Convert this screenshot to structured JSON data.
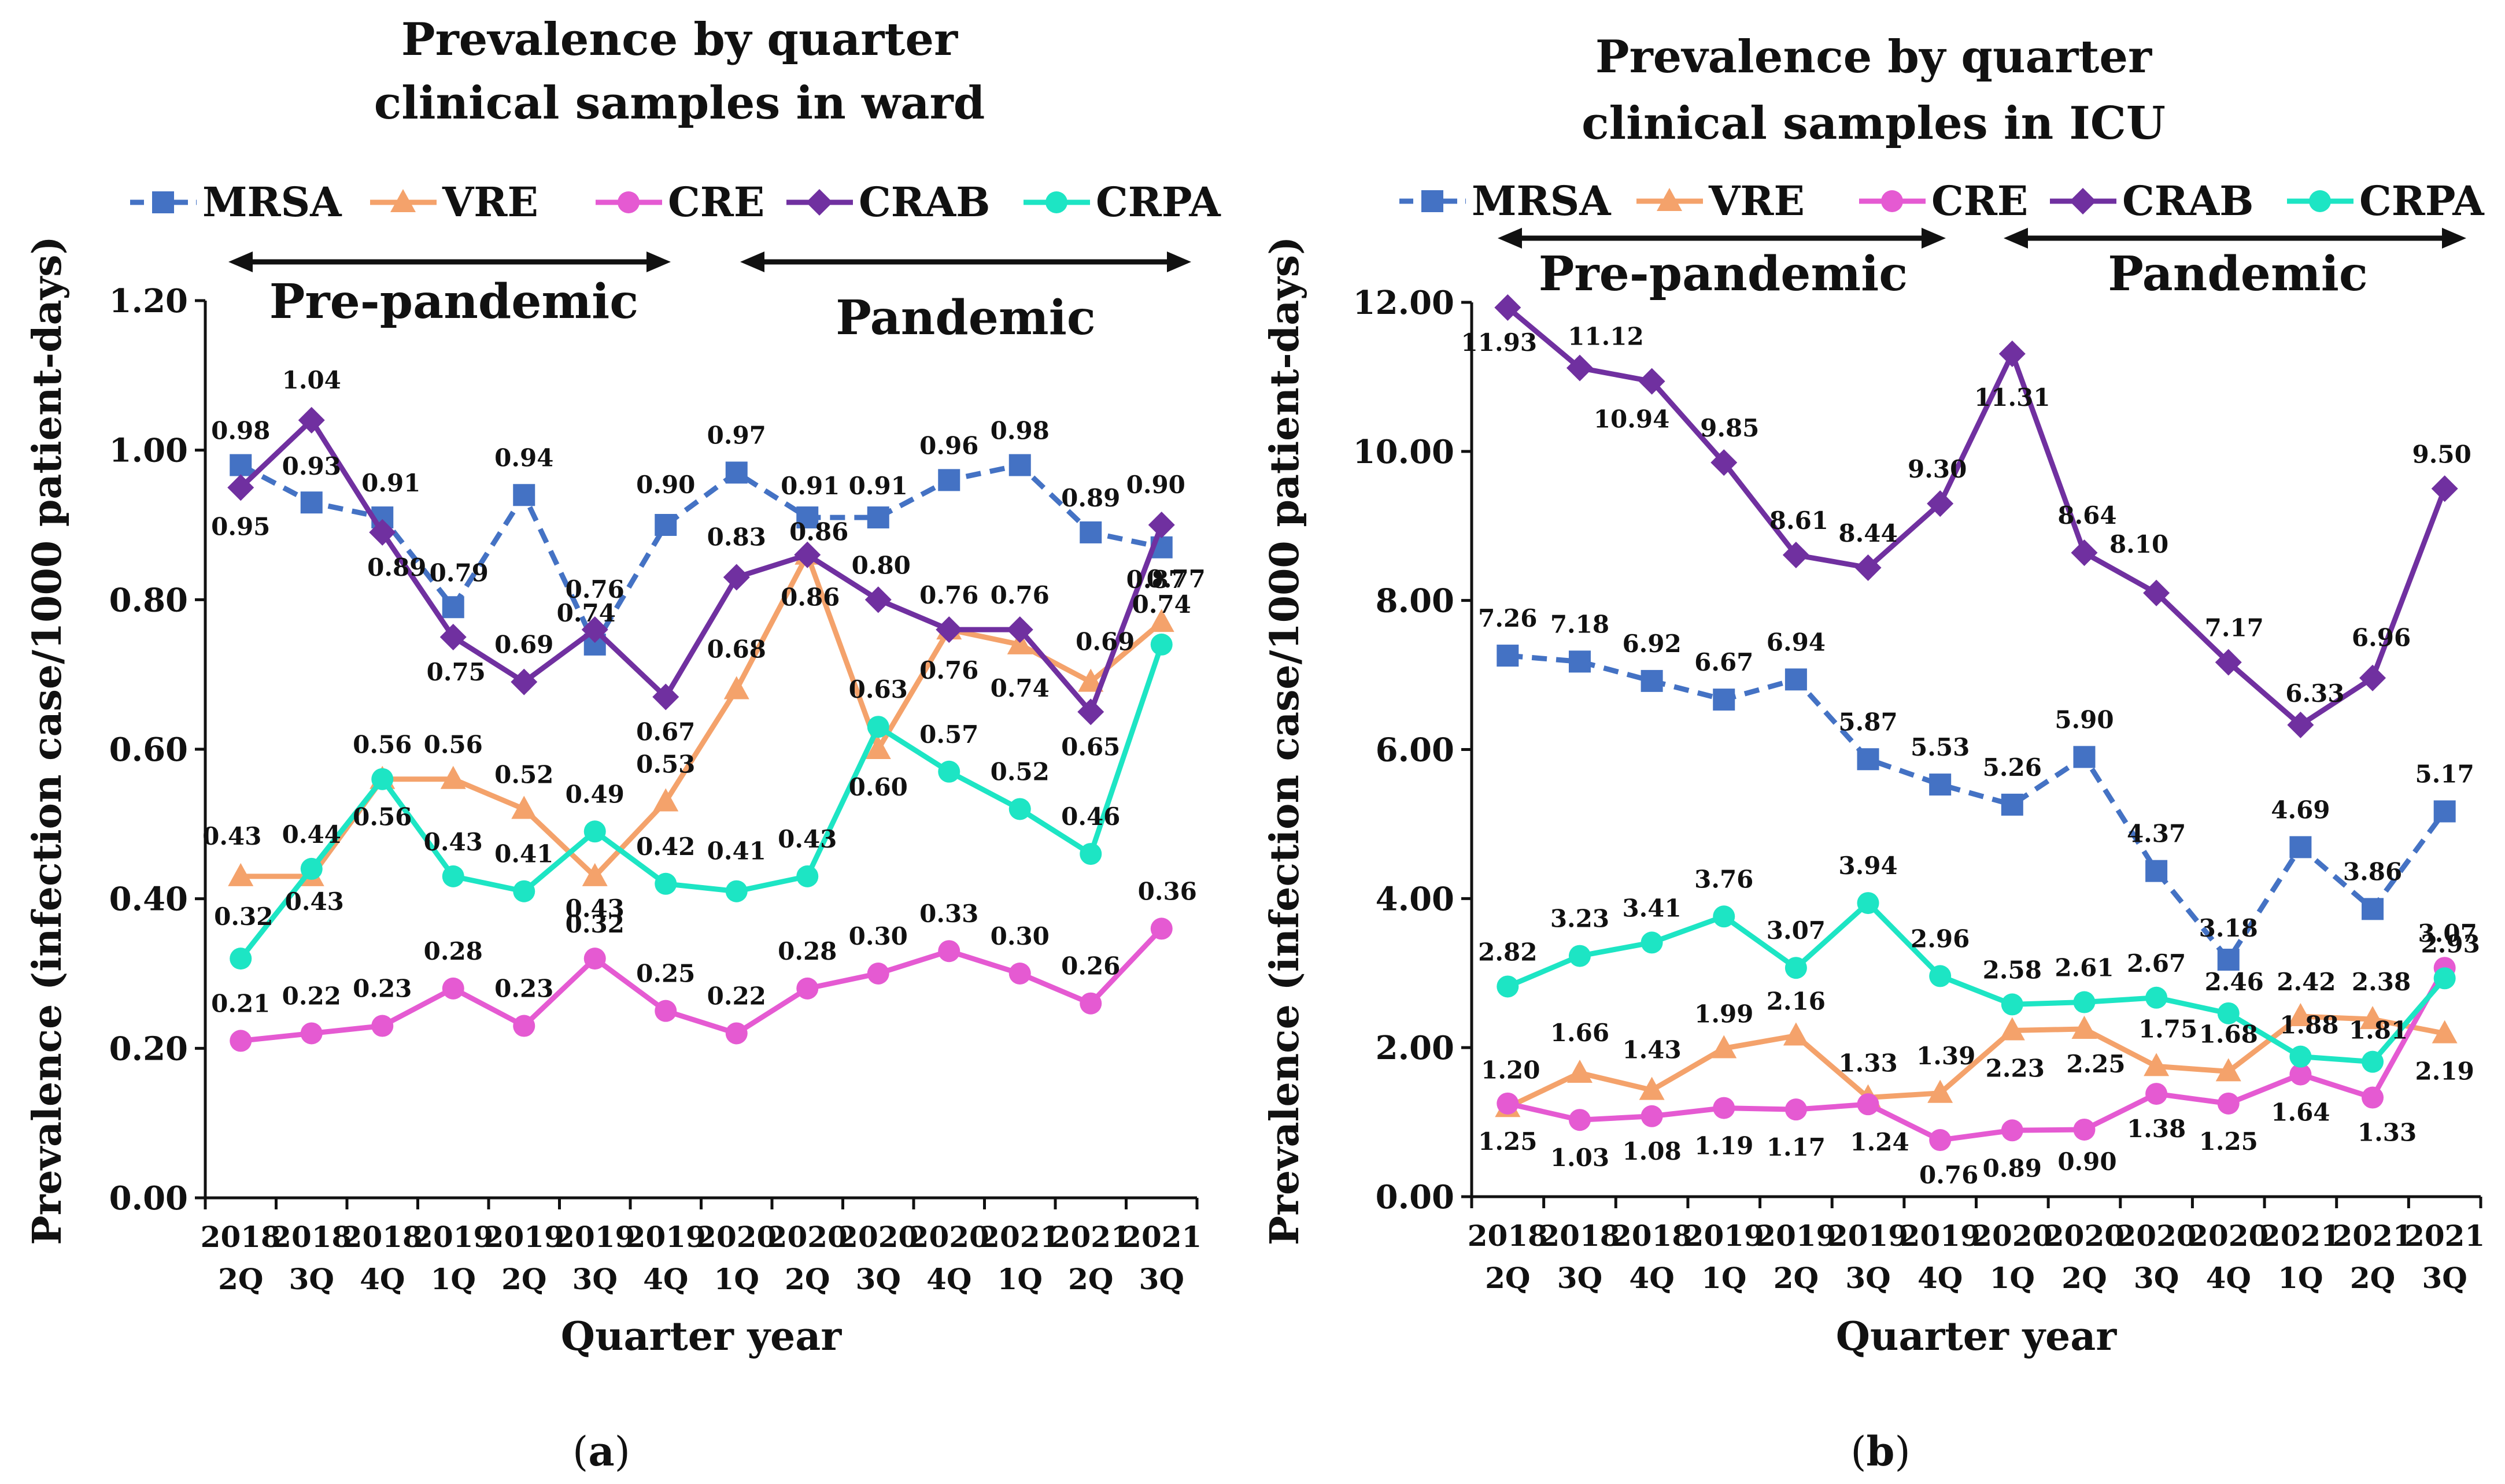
{
  "chart_data": [
    {
      "type": "line",
      "panel_label": {
        "open": "(",
        "letter": "a",
        "close": ")"
      },
      "title_lines": [
        "Prevalence by quarter",
        "clinical samples in ward"
      ],
      "xlabel": "Quarter year",
      "ylabel": "Prevalence (infection case/1000 patient-days)",
      "ylim": [
        0,
        1.2
      ],
      "yticks": [
        "0.00",
        "0.20",
        "0.40",
        "0.60",
        "0.80",
        "1.00",
        "1.20"
      ],
      "periods": {
        "pre": "Pre-pandemic",
        "post": "Pandemic"
      },
      "categories": [
        [
          "2018",
          "2Q"
        ],
        [
          "2018",
          "3Q"
        ],
        [
          "2018",
          "4Q"
        ],
        [
          "2019",
          "1Q"
        ],
        [
          "2019",
          "2Q"
        ],
        [
          "2019",
          "3Q"
        ],
        [
          "2019",
          "4Q"
        ],
        [
          "2020",
          "1Q"
        ],
        [
          "2020",
          "2Q"
        ],
        [
          "2020",
          "3Q"
        ],
        [
          "2020",
          "4Q"
        ],
        [
          "2021",
          "1Q"
        ],
        [
          "2021",
          "2Q"
        ],
        [
          "2021",
          "3Q"
        ]
      ],
      "series": [
        {
          "name": "MRSA",
          "color": "#4472C4",
          "marker": "square",
          "dashed": true,
          "values": [
            0.98,
            0.93,
            0.91,
            0.79,
            0.94,
            0.74,
            0.9,
            0.97,
            0.91,
            0.91,
            0.96,
            0.98,
            0.89,
            0.87
          ],
          "labels": [
            "0.98",
            "0.93",
            "0.91",
            "0.79",
            "0.94",
            "0.74",
            "0.90",
            "0.97",
            "0.91",
            "0.91",
            "0.96",
            "0.98",
            "0.89",
            "0.87"
          ]
        },
        {
          "name": "VRE",
          "color": "#F4A26B",
          "marker": "triangle",
          "dashed": false,
          "values": [
            0.43,
            0.43,
            0.56,
            0.56,
            0.52,
            0.43,
            0.53,
            0.68,
            0.86,
            0.6,
            0.76,
            0.74,
            0.69,
            0.77
          ],
          "labels": [
            "0.43",
            "0.43",
            "0.56",
            "0.56",
            "0.52",
            "0.43",
            "0.53",
            "0.68",
            "0.86",
            "0.60",
            "0.76",
            "0.74",
            "0.69",
            "0.77"
          ]
        },
        {
          "name": "CRE",
          "color": "#E55AD2",
          "marker": "circle",
          "dashed": false,
          "values": [
            0.21,
            0.22,
            0.23,
            0.28,
            0.23,
            0.32,
            0.25,
            0.22,
            0.28,
            0.3,
            0.33,
            0.3,
            0.26,
            0.36
          ],
          "labels": [
            "0.21",
            "0.22",
            "0.23",
            "0.28",
            "0.23",
            "0.32",
            "0.25",
            "0.22",
            "0.28",
            "0.30",
            "0.33",
            "0.30",
            "0.26",
            "0.36"
          ]
        },
        {
          "name": "CRAB",
          "color": "#7030A0",
          "marker": "diamond",
          "dashed": false,
          "values": [
            0.95,
            1.04,
            0.89,
            0.75,
            0.69,
            0.76,
            0.67,
            0.83,
            0.86,
            0.8,
            0.76,
            0.76,
            0.65,
            0.9
          ],
          "labels": [
            "0.95",
            "1.04",
            "0.89",
            "0.75",
            "0.69",
            "0.76",
            "0.67",
            "0.83",
            "0.86",
            "0.80",
            "0.76",
            "0.76",
            "0.65",
            "0.90"
          ]
        },
        {
          "name": "CRPA",
          "color": "#1DE5C4",
          "marker": "circle",
          "dashed": false,
          "values": [
            0.32,
            0.44,
            0.56,
            0.43,
            0.41,
            0.49,
            0.42,
            0.41,
            0.43,
            0.63,
            0.57,
            0.52,
            0.46,
            0.74
          ],
          "labels": [
            "0.32",
            "0.44",
            "0.56",
            "0.43",
            "0.41",
            "0.49",
            "0.42",
            "0.41",
            "0.43",
            "0.63",
            "0.57",
            "0.52",
            "0.46",
            "0.74"
          ]
        }
      ]
    },
    {
      "type": "line",
      "panel_label": {
        "open": "(",
        "letter": "b",
        "close": ")"
      },
      "title_lines": [
        "Prevalence by quarter",
        "clinical samples in ICU"
      ],
      "xlabel": "Quarter year",
      "ylabel": "Prevalence (infection case/1000 patient-days)",
      "ylim": [
        0,
        12
      ],
      "yticks": [
        "0.00",
        "2.00",
        "4.00",
        "6.00",
        "8.00",
        "10.00",
        "12.00"
      ],
      "periods": {
        "pre": "Pre-pandemic",
        "post": "Pandemic"
      },
      "categories": [
        [
          "2018",
          "2Q"
        ],
        [
          "2018",
          "3Q"
        ],
        [
          "2018",
          "4Q"
        ],
        [
          "2019",
          "1Q"
        ],
        [
          "2019",
          "2Q"
        ],
        [
          "2019",
          "3Q"
        ],
        [
          "2019",
          "4Q"
        ],
        [
          "2020",
          "1Q"
        ],
        [
          "2020",
          "2Q"
        ],
        [
          "2020",
          "3Q"
        ],
        [
          "2020",
          "4Q"
        ],
        [
          "2021",
          "1Q"
        ],
        [
          "2021",
          "2Q"
        ],
        [
          "2021",
          "3Q"
        ]
      ],
      "series": [
        {
          "name": "MRSA",
          "color": "#4472C4",
          "marker": "square",
          "dashed": true,
          "values": [
            7.26,
            7.18,
            6.92,
            6.67,
            6.94,
            5.87,
            5.53,
            5.26,
            5.9,
            4.37,
            3.18,
            4.69,
            3.86,
            5.17
          ],
          "labels": [
            "7.26",
            "7.18",
            "6.92",
            "6.67",
            "6.94",
            "5.87",
            "5.53",
            "5.26",
            "5.90",
            "4.37",
            "3.18",
            "4.69",
            "3.86",
            "5.17"
          ]
        },
        {
          "name": "VRE",
          "color": "#F4A26B",
          "marker": "triangle",
          "dashed": false,
          "values": [
            1.2,
            1.66,
            1.43,
            1.99,
            2.16,
            1.33,
            1.39,
            2.23,
            2.25,
            1.75,
            1.68,
            2.42,
            2.38,
            2.19
          ],
          "labels": [
            "1.20",
            "1.66",
            "1.43",
            "1.99",
            "2.16",
            "1.33",
            "1.39",
            "2.23",
            "2.25",
            "1.75",
            "1.68",
            "2.42",
            "2.38",
            "2.19"
          ]
        },
        {
          "name": "CRE",
          "color": "#E55AD2",
          "marker": "circle",
          "dashed": false,
          "values": [
            1.25,
            1.03,
            1.08,
            1.19,
            1.17,
            1.24,
            0.76,
            0.89,
            0.9,
            1.38,
            1.25,
            1.64,
            1.33,
            3.07
          ],
          "labels": [
            "1.25",
            "1.03",
            "1.08",
            "1.19",
            "1.17",
            "1.24",
            "0.76",
            "0.89",
            "0.90",
            "1.38",
            "1.25",
            "1.64",
            "1.33",
            "3.07"
          ]
        },
        {
          "name": "CRAB",
          "color": "#7030A0",
          "marker": "diamond",
          "dashed": false,
          "values": [
            11.93,
            11.12,
            10.94,
            9.85,
            8.61,
            8.44,
            9.3,
            11.31,
            8.64,
            8.1,
            7.17,
            6.33,
            6.96,
            9.5
          ],
          "labels": [
            "11.93",
            "11.12",
            "10.94",
            "9.85",
            "8.61",
            "8.44",
            "9.30",
            "11.31",
            "8.64",
            "8.10",
            "7.17",
            "6.33",
            "6.96",
            "9.50"
          ]
        },
        {
          "name": "CRPA",
          "color": "#1DE5C4",
          "marker": "circle",
          "dashed": false,
          "values": [
            2.82,
            3.23,
            3.41,
            3.76,
            3.07,
            3.94,
            2.96,
            2.58,
            2.61,
            2.67,
            2.46,
            1.88,
            1.81,
            2.93
          ],
          "labels": [
            "2.82",
            "3.23",
            "3.41",
            "3.76",
            "3.07",
            "3.94",
            "2.96",
            "2.58",
            "2.61",
            "2.67",
            "2.46",
            "1.88",
            "1.81",
            "2.93"
          ]
        }
      ]
    }
  ]
}
